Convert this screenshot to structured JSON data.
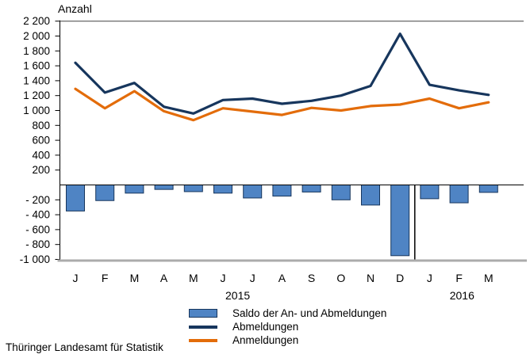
{
  "footer": "Thüringer Landesamt für Statistik",
  "colors": {
    "saldo_fill": "#4f84c4",
    "saldo_border": "#17365d",
    "abmeldungen": "#17365d",
    "anmeldungen": "#e36c0a",
    "axis": "#000000",
    "top_frame": "#404040",
    "bottom_line": "#ababab",
    "text": "#000000"
  },
  "legend": [
    {
      "type": "bar",
      "label": "Saldo der An- und Abmeldungen"
    },
    {
      "type": "line",
      "label": "Abmeldungen"
    },
    {
      "type": "line",
      "label": "Anmeldungen"
    }
  ],
  "chart_data": {
    "type": "bar+line combo",
    "title": "Anzahl",
    "ylabel": "Anzahl",
    "xlabel": "",
    "ylim": [
      -1000,
      2200
    ],
    "grid": "off",
    "legend_position": "bottom",
    "yticks": [
      {
        "value": 2200,
        "label": "2 200"
      },
      {
        "value": 2000,
        "label": "2 000"
      },
      {
        "value": 1800,
        "label": "1 800"
      },
      {
        "value": 1600,
        "label": "1 600"
      },
      {
        "value": 1400,
        "label": "1 400"
      },
      {
        "value": 1200,
        "label": "1 200"
      },
      {
        "value": 1000,
        "label": "1 000"
      },
      {
        "value": 800,
        "label": "800"
      },
      {
        "value": 600,
        "label": "600"
      },
      {
        "value": 400,
        "label": "400"
      },
      {
        "value": 200,
        "label": "200"
      },
      {
        "value": -200,
        "label": "- 200"
      },
      {
        "value": -400,
        "label": "- 400"
      },
      {
        "value": -600,
        "label": "- 600"
      },
      {
        "value": -800,
        "label": "- 800"
      },
      {
        "value": -1000,
        "label": "-1 000"
      }
    ],
    "categories": [
      "J",
      "F",
      "M",
      "A",
      "M",
      "J",
      "J",
      "A",
      "S",
      "O",
      "N",
      "D",
      "J",
      "F",
      "M"
    ],
    "year_labels": [
      {
        "label": "2015",
        "month_index": 5.5
      },
      {
        "label": "2016",
        "month_index": 13.1
      }
    ],
    "year_separator_after_index": 11,
    "series": [
      {
        "name": "Saldo der An- und Abmeldungen",
        "type": "bar",
        "values": [
          -350,
          -210,
          -110,
          -60,
          -90,
          -110,
          -175,
          -150,
          -95,
          -200,
          -270,
          -950,
          -185,
          -240,
          -100
        ]
      },
      {
        "name": "Abmeldungen",
        "type": "line",
        "values": [
          1640,
          1240,
          1370,
          1050,
          960,
          1140,
          1160,
          1090,
          1130,
          1200,
          1330,
          2030,
          1345,
          1270,
          1210
        ]
      },
      {
        "name": "Anmeldungen",
        "type": "line",
        "values": [
          1290,
          1030,
          1260,
          990,
          870,
          1030,
          985,
          940,
          1035,
          1000,
          1060,
          1080,
          1160,
          1030,
          1110
        ]
      }
    ]
  }
}
